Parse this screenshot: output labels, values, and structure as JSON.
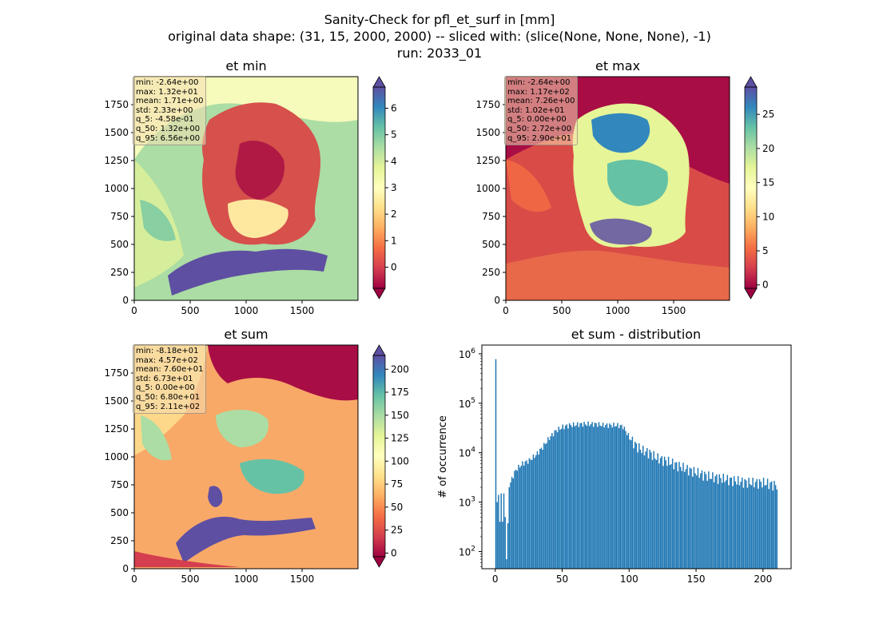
{
  "figure": {
    "title_lines": [
      "Sanity-Check for pfl_et_surf in [mm]",
      "original data shape: (31, 15, 2000, 2000) -- sliced with: (slice(None, None, None), -1)",
      "run: 2033_01"
    ]
  },
  "colors": {
    "hist_bar": "#1f77b4",
    "stats_box": "#f5deb3",
    "colormap": "Spectral"
  },
  "chart_data": [
    {
      "type": "heatmap",
      "title": "et min",
      "xlim": [
        0,
        2000
      ],
      "ylim": [
        0,
        2000
      ],
      "xticks": [
        "0",
        "500",
        "1000",
        "1500"
      ],
      "yticks": [
        "0",
        "250",
        "500",
        "750",
        "1000",
        "1250",
        "1500",
        "1750"
      ],
      "colorbar": {
        "min": -0.8,
        "max": 6.8,
        "extend": "both",
        "ticks": [
          "0",
          "1",
          "2",
          "3",
          "4",
          "5",
          "6"
        ]
      },
      "stats": [
        "min: -2.64e+00",
        "max: 1.32e+01",
        "mean: 1.71e+00",
        "std: 2.33e+00",
        "q_5: -4.58e-01",
        "q_50: 1.32e+00",
        "q_95: 6.56e+00"
      ]
    },
    {
      "type": "heatmap",
      "title": "et max",
      "xlim": [
        0,
        2000
      ],
      "ylim": [
        0,
        2000
      ],
      "xticks": [
        "0",
        "500",
        "1000",
        "1500"
      ],
      "yticks": [
        "0",
        "250",
        "500",
        "750",
        "1000",
        "1250",
        "1500",
        "1750"
      ],
      "colorbar": {
        "min": -0.5,
        "max": 29,
        "extend": "both",
        "ticks": [
          "0",
          "5",
          "10",
          "15",
          "20",
          "25"
        ]
      },
      "stats": [
        "min: -2.64e+00",
        "max: 1.17e+02",
        "mean: 7.26e+00",
        "std: 1.02e+01",
        "q_5: 0.00e+00",
        "q_50: 2.72e+00",
        "q_95: 2.90e+01"
      ]
    },
    {
      "type": "heatmap",
      "title": "et sum",
      "xlim": [
        0,
        2000
      ],
      "ylim": [
        0,
        2000
      ],
      "xticks": [
        "0",
        "500",
        "1000",
        "1500"
      ],
      "yticks": [
        "0",
        "250",
        "500",
        "750",
        "1000",
        "1250",
        "1500",
        "1750"
      ],
      "colorbar": {
        "min": -4,
        "max": 215,
        "extend": "both",
        "ticks": [
          "0",
          "25",
          "50",
          "75",
          "100",
          "125",
          "150",
          "175",
          "200"
        ]
      },
      "stats": [
        "min: -8.18e+01",
        "max: 4.57e+02",
        "mean: 7.60e+01",
        "std: 6.73e+01",
        "q_5: 0.00e+00",
        "q_50: 6.80e+01",
        "q_95: 2.11e+02"
      ]
    },
    {
      "type": "bar",
      "title": "et sum - distribution",
      "ylabel": "# of occurrence",
      "yscale": "log",
      "xlim": [
        -10,
        221
      ],
      "ylim": [
        45,
        1500000
      ],
      "xticks": [
        "0",
        "50",
        "100",
        "150",
        "200"
      ],
      "yticks": [
        "10^2",
        "10^3",
        "10^4",
        "10^5",
        "10^6"
      ],
      "profile": {
        "x": [
          0,
          1,
          2,
          3,
          4,
          5,
          6,
          7,
          8,
          10,
          12,
          15,
          20,
          25,
          30,
          35,
          40,
          45,
          50,
          55,
          60,
          65,
          70,
          75,
          80,
          85,
          90,
          95,
          100,
          105,
          110,
          115,
          120,
          130,
          140,
          150,
          160,
          170,
          180,
          190,
          200,
          210
        ],
        "counts": [
          780000,
          1000,
          1400,
          400,
          1500,
          400,
          1500,
          500,
          70,
          2000,
          3000,
          4500,
          6000,
          7000,
          9000,
          13000,
          20000,
          28000,
          33000,
          36000,
          37000,
          38000,
          38000,
          38000,
          36000,
          36000,
          36000,
          34000,
          20000,
          14000,
          11000,
          10000,
          8000,
          6500,
          5000,
          4000,
          3300,
          3000,
          2700,
          2500,
          2500,
          2200
        ]
      }
    }
  ]
}
